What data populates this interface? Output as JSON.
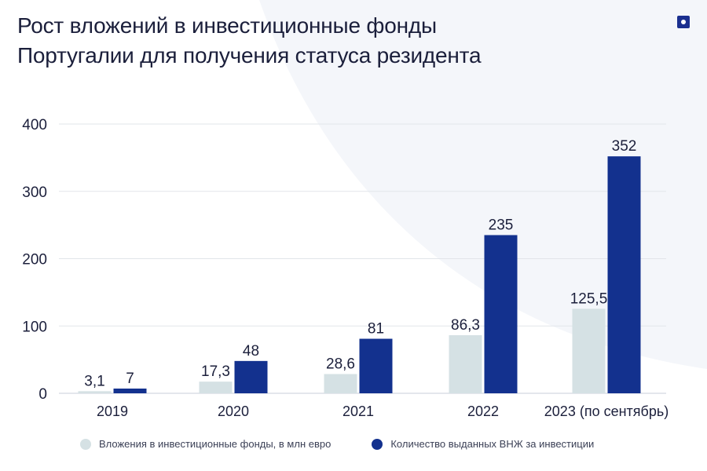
{
  "header": {
    "title_line1": "Рост вложений в инвестиционные фонды",
    "title_line2": "Португалии для получения статуса резидента"
  },
  "icons": {
    "logo": "square-dot-logo-icon"
  },
  "colors": {
    "series1": "#d5e1e4",
    "series2": "#13318e",
    "axis_text": "#1b1f3b",
    "grid": "#e2e5ea"
  },
  "chart_data": {
    "type": "bar",
    "title": "Рост вложений в инвестиционные фонды Португалии для получения статуса резидента",
    "categories": [
      "2019",
      "2020",
      "2021",
      "2022",
      "2023 (по сентябрь)"
    ],
    "series": [
      {
        "name": "Вложения в инвестиционные фонды, в млн евро",
        "values": [
          3.1,
          17.3,
          28.6,
          86.3,
          125.5
        ],
        "labels": [
          "3,1",
          "17,3",
          "28,6",
          "86,3",
          "125,5"
        ]
      },
      {
        "name": "Количество выданных ВНЖ за инвестиции",
        "values": [
          7,
          48,
          81,
          235,
          352
        ],
        "labels": [
          "7",
          "48",
          "81",
          "235",
          "352"
        ]
      }
    ],
    "ylim": [
      0,
      400
    ],
    "yticks": [
      0,
      100,
      200,
      300,
      400
    ],
    "xlabel": "",
    "ylabel": "",
    "grid": true,
    "legend_position": "bottom-left"
  }
}
